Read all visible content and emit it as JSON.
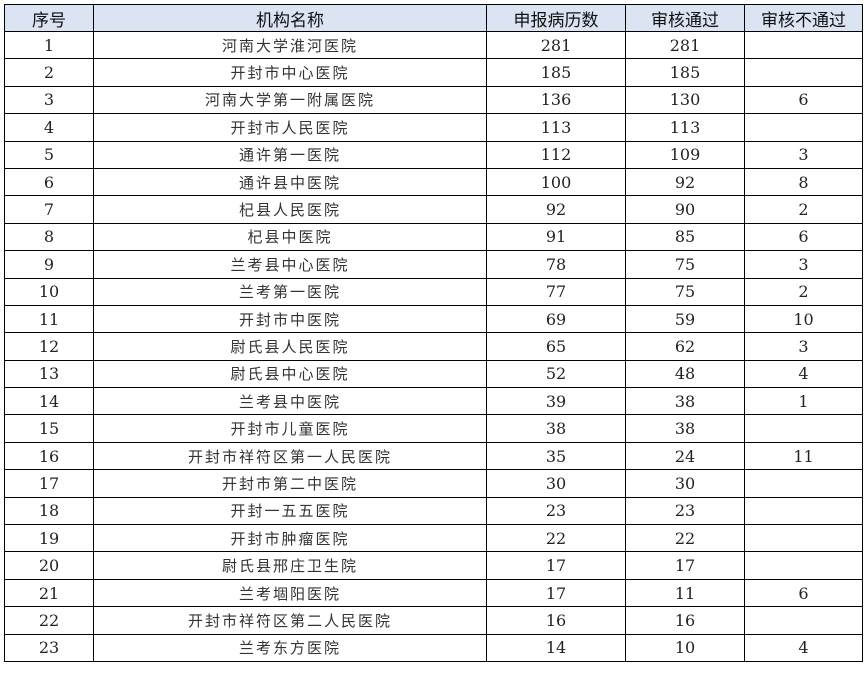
{
  "header": {
    "no": "序号",
    "name": "机构名称",
    "reported": "申报病历数",
    "passed": "审核通过",
    "failed": "审核不通过"
  },
  "rows": [
    [
      "1",
      "河南大学淮河医院",
      "281",
      "281",
      ""
    ],
    [
      "2",
      "开封市中心医院",
      "185",
      "185",
      ""
    ],
    [
      "3",
      "河南大学第一附属医院",
      "136",
      "130",
      "6"
    ],
    [
      "4",
      "开封市人民医院",
      "113",
      "113",
      ""
    ],
    [
      "5",
      "通许第一医院",
      "112",
      "109",
      "3"
    ],
    [
      "6",
      "通许县中医院",
      "100",
      "92",
      "8"
    ],
    [
      "7",
      "杞县人民医院",
      "92",
      "90",
      "2"
    ],
    [
      "8",
      "杞县中医院",
      "91",
      "85",
      "6"
    ],
    [
      "9",
      "兰考县中心医院",
      "78",
      "75",
      "3"
    ],
    [
      "10",
      "兰考第一医院",
      "77",
      "75",
      "2"
    ],
    [
      "11",
      "开封市中医院",
      "69",
      "59",
      "10"
    ],
    [
      "12",
      "尉氏县人民医院",
      "65",
      "62",
      "3"
    ],
    [
      "13",
      "尉氏县中心医院",
      "52",
      "48",
      "4"
    ],
    [
      "14",
      "兰考县中医院",
      "39",
      "38",
      "1"
    ],
    [
      "15",
      "开封市儿童医院",
      "38",
      "38",
      ""
    ],
    [
      "16",
      "开封市祥符区第一人民医院",
      "35",
      "24",
      "11"
    ],
    [
      "17",
      "开封市第二中医院",
      "30",
      "30",
      ""
    ],
    [
      "18",
      "开封一五五医院",
      "23",
      "23",
      ""
    ],
    [
      "19",
      "开封市肿瘤医院",
      "22",
      "22",
      ""
    ],
    [
      "20",
      "尉氏县邢庄卫生院",
      "17",
      "17",
      ""
    ],
    [
      "21",
      "兰考堌阳医院",
      "17",
      "11",
      "6"
    ],
    [
      "22",
      "开封市祥符区第二人民医院",
      "16",
      "16",
      ""
    ],
    [
      "23",
      "兰考东方医院",
      "14",
      "10",
      "4"
    ]
  ],
  "colors": {
    "header_bg": "#dbe4f3"
  }
}
